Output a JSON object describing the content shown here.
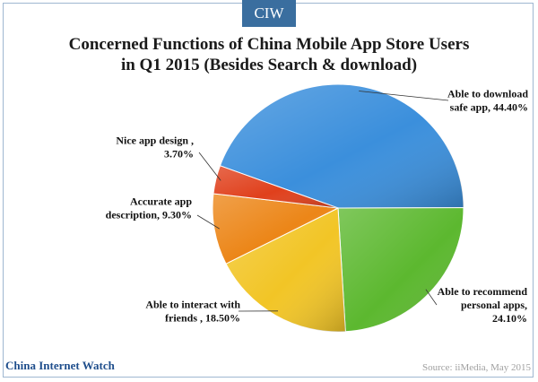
{
  "brand": "CIW",
  "title_line1": "Concerned Functions of China Mobile App Store Users",
  "title_line2": "in Q1 2015 (Besides Search & download)",
  "footer_site": "China Internet Watch",
  "footer_source": "Source: iiMedia,  May 2015",
  "chart_data": {
    "type": "pie",
    "title": "Concerned Functions of China Mobile App Store Users in Q1 2015 (Besides Search & download)",
    "slices": [
      {
        "label": "Able to download safe app",
        "value": 44.4,
        "display": "44.40%",
        "color": "#3b8fdc"
      },
      {
        "label": "Able to recommend personal apps",
        "value": 24.1,
        "display": "24.10%",
        "color": "#5cb82f"
      },
      {
        "label": "Able to interact with friends",
        "value": 18.5,
        "display": "18.50%",
        "color": "#f2c526"
      },
      {
        "label": "Accurate app description",
        "value": 9.3,
        "display": "9.30%",
        "color": "#ec8618"
      },
      {
        "label": "Nice app design",
        "value": 3.7,
        "display": "3.70%",
        "color": "#e0401c"
      }
    ],
    "label_text": [
      [
        "Able to download",
        "safe app, 44.40%"
      ],
      [
        "Able to recommend",
        "personal apps,",
        "24.10%"
      ],
      [
        "Able to interact with",
        "friends , 18.50%"
      ],
      [
        "Accurate app",
        "description, 9.30%"
      ],
      [
        "Nice app design ,",
        "3.70%"
      ]
    ]
  }
}
